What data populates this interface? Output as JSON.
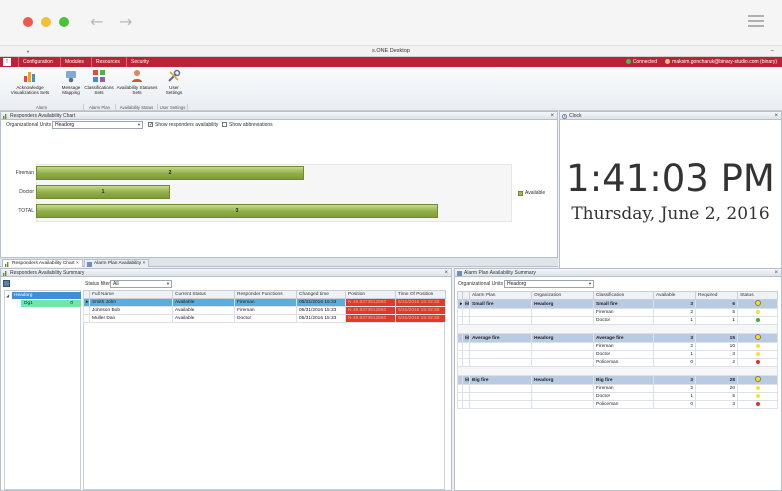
{
  "window": {
    "title": "s.ONE Desktop"
  },
  "menu": {
    "app_icon": "!",
    "items": [
      "Configuration",
      "Modules",
      "Resources",
      "Security"
    ],
    "connection": "Connected",
    "user": "maksim.goncharuk@binary-studio.com (binary)"
  },
  "ribbon": {
    "buttons": [
      {
        "label": "Acknowledge Visualizations Sets",
        "icon": "bar-chart-icon"
      },
      {
        "label": "Message Mapping",
        "icon": "message-mapping-icon"
      },
      {
        "label": "Classifications Sets",
        "icon": "classifications-icon"
      },
      {
        "label": "Availability Statuses Sets",
        "icon": "person-icon"
      },
      {
        "label": "User Settings",
        "icon": "tools-icon"
      }
    ],
    "groups": [
      "Alarm",
      "Alarm Plan",
      "Availability Status",
      "User Settings"
    ]
  },
  "chart_panel": {
    "title": "Responders Availability Chart",
    "org_label": "Organizational Units",
    "org_value": "Headorg",
    "show_availability": "Show responders availability",
    "show_abbreviations": "Show abbreviations",
    "legend": "Available"
  },
  "chart_data": {
    "type": "bar",
    "orientation": "horizontal",
    "categories": [
      "Fireman",
      "Doctor",
      "TOTAL"
    ],
    "series": [
      {
        "name": "Available",
        "values": [
          2,
          1,
          3
        ]
      }
    ],
    "xlim": [
      0,
      3.55
    ],
    "legend_position": "right"
  },
  "clock": {
    "title": "Clock",
    "time": "1:41:03 PM",
    "date": "Thursday, June 2, 2016"
  },
  "tabs": [
    "Responders Availability Chart",
    "Alarm Plan Availability"
  ],
  "summary": {
    "title": "Responders Availability Summary",
    "tree": [
      {
        "name": "Headorg",
        "count": ""
      },
      {
        "name": "Dg1",
        "count": "0"
      }
    ],
    "status_filter_label": "Status filter:",
    "status_filter_value": "All",
    "columns": [
      "Full Name",
      "Current Status",
      "Responder Functions",
      "Changed time",
      "Position",
      "Time Of Position"
    ],
    "rows": [
      [
        "Smith John",
        "Available",
        "Fireman",
        "05/31/2016 15:33",
        "N 49.8373612860",
        "5/31/2016 15:33:38"
      ],
      [
        "Johnson Bob",
        "Available",
        "Fireman",
        "05/31/2016 15:33",
        "N 49.8373612860",
        "5/31/2016 15:33:38"
      ],
      [
        "Muller Dan",
        "Available",
        "Doctor",
        "05/31/2016 15:33",
        "N 49.8373612860",
        "5/31/2016 15:33:38"
      ]
    ]
  },
  "alarm_plan": {
    "title": "Alarm Plan Availability Summary",
    "org_label": "Organizational Units",
    "org_value": "Headorg",
    "columns": [
      "Alarm Plan",
      "Organization",
      "Classification",
      "Available",
      "Required",
      "Status"
    ],
    "groups": [
      {
        "plan": "Small fire",
        "org": "Headorg",
        "cls": "Small fire",
        "available": "3",
        "required": "6",
        "rows": [
          [
            "Fireman",
            "2",
            "5",
            "#f3e23a"
          ],
          [
            "Doctor",
            "1",
            "1",
            "#3fae3a"
          ]
        ]
      },
      {
        "plan": "Average fire",
        "org": "Headorg",
        "cls": "Average fire",
        "available": "3",
        "required": "15",
        "rows": [
          [
            "Fireman",
            "2",
            "10",
            "#f3e23a"
          ],
          [
            "Doctor",
            "1",
            "3",
            "#f3e23a"
          ],
          [
            "Policeman",
            "0",
            "2",
            "#d8362a"
          ]
        ]
      },
      {
        "plan": "Big fire",
        "org": "Headorg",
        "cls": "Big fire",
        "available": "3",
        "required": "28",
        "rows": [
          [
            "Fireman",
            "2",
            "20",
            "#f3e23a"
          ],
          [
            "Doctor",
            "1",
            "5",
            "#f3e23a"
          ],
          [
            "Policeman",
            "0",
            "3",
            "#d8362a"
          ]
        ]
      }
    ]
  }
}
